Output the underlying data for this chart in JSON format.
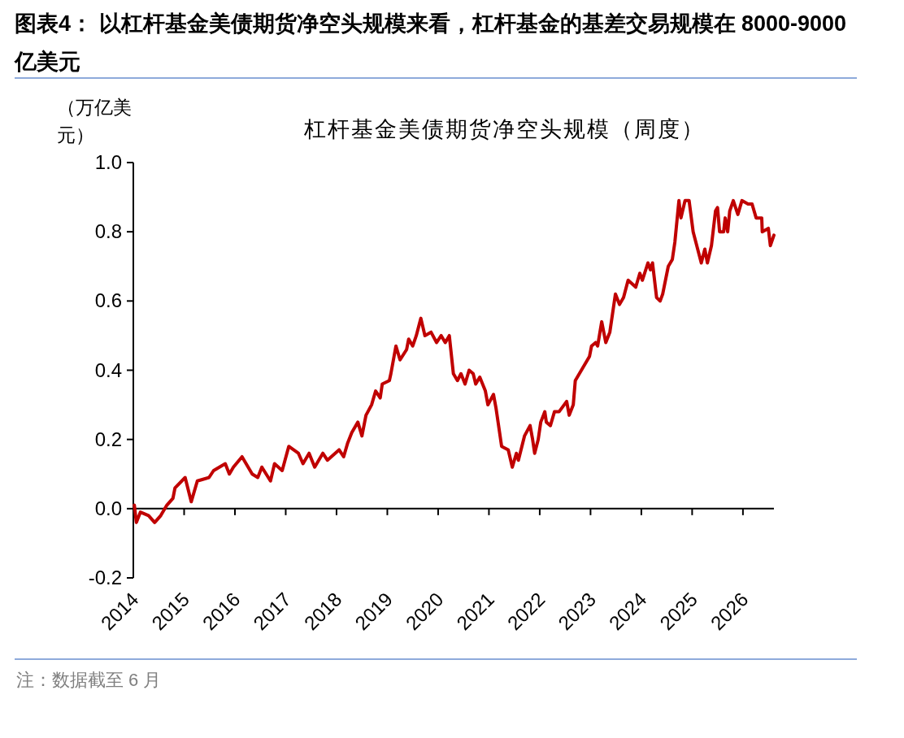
{
  "chart_data": {
    "type": "line",
    "title": "图表4： 以杠杆基金美债期货净空头规模来看，杠杆基金的基差交易规模在 8000-9000 亿美元",
    "subtitle": "杠杆基金美债期货净空头规模（周度）",
    "ylabel": "（万亿美元）",
    "annotations": [
      "注：数据截至 6 月"
    ],
    "x": [
      2014.02,
      2014.06,
      2014.14,
      2014.3,
      2014.42,
      2014.54,
      2014.66,
      2014.78,
      2014.82,
      2015.02,
      2015.14,
      2015.26,
      2015.49,
      2015.58,
      2015.81,
      2015.89,
      2015.97,
      2016.14,
      2016.34,
      2016.45,
      2016.53,
      2016.7,
      2016.78,
      2016.93,
      2017.06,
      2017.25,
      2017.34,
      2017.46,
      2017.57,
      2017.73,
      2017.82,
      2018.05,
      2018.14,
      2018.22,
      2018.3,
      2018.42,
      2018.5,
      2018.58,
      2018.69,
      2018.77,
      2018.86,
      2018.9,
      2019.04,
      2019.07,
      2019.17,
      2019.25,
      2019.38,
      2019.42,
      2019.5,
      2019.57,
      2019.66,
      2019.74,
      2019.86,
      2019.97,
      2020.06,
      2020.14,
      2020.22,
      2020.3,
      2020.38,
      2020.45,
      2020.53,
      2020.61,
      2020.69,
      2020.74,
      2020.82,
      2020.93,
      2020.98,
      2021.09,
      2021.14,
      2021.25,
      2021.38,
      2021.46,
      2021.54,
      2021.58,
      2021.7,
      2021.81,
      2021.86,
      2021.9,
      2021.97,
      2022.02,
      2022.1,
      2022.13,
      2022.21,
      2022.29,
      2022.38,
      2022.53,
      2022.58,
      2022.66,
      2022.7,
      2022.78,
      2022.9,
      2022.98,
      2023.02,
      2023.1,
      2023.14,
      2023.22,
      2023.3,
      2023.38,
      2023.49,
      2023.57,
      2023.65,
      2023.74,
      2023.89,
      2023.97,
      2024.02,
      2024.13,
      2024.18,
      2024.22,
      2024.3,
      2024.37,
      2024.42,
      2024.53,
      2024.61,
      2024.66,
      2024.74,
      2024.78,
      2024.86,
      2024.94,
      2025.02,
      2025.18,
      2025.25,
      2025.3,
      2025.38,
      2025.46,
      2025.5,
      2025.54,
      2025.62,
      2025.65,
      2025.7,
      2025.74,
      2025.81,
      2025.9,
      2025.98,
      2026.1,
      2026.18,
      2026.26,
      2026.37,
      2026.38,
      2026.5,
      2026.54,
      2026.61
    ],
    "series": [
      {
        "color": "#c00000",
        "values": [
          0.01,
          -0.04,
          -0.01,
          -0.02,
          -0.04,
          -0.02,
          0.01,
          0.03,
          0.06,
          0.09,
          0.02,
          0.08,
          0.09,
          0.11,
          0.13,
          0.1,
          0.12,
          0.15,
          0.1,
          0.09,
          0.12,
          0.08,
          0.13,
          0.11,
          0.18,
          0.16,
          0.13,
          0.16,
          0.12,
          0.16,
          0.14,
          0.17,
          0.15,
          0.19,
          0.22,
          0.25,
          0.21,
          0.27,
          0.3,
          0.34,
          0.32,
          0.36,
          0.37,
          0.39,
          0.47,
          0.43,
          0.46,
          0.49,
          0.47,
          0.5,
          0.55,
          0.5,
          0.51,
          0.48,
          0.5,
          0.48,
          0.5,
          0.39,
          0.37,
          0.39,
          0.36,
          0.4,
          0.39,
          0.36,
          0.38,
          0.34,
          0.3,
          0.33,
          0.29,
          0.18,
          0.17,
          0.12,
          0.16,
          0.14,
          0.21,
          0.24,
          0.2,
          0.16,
          0.2,
          0.25,
          0.28,
          0.25,
          0.24,
          0.28,
          0.28,
          0.31,
          0.27,
          0.3,
          0.37,
          0.39,
          0.42,
          0.44,
          0.47,
          0.48,
          0.47,
          0.54,
          0.48,
          0.51,
          0.62,
          0.59,
          0.61,
          0.66,
          0.64,
          0.68,
          0.66,
          0.71,
          0.69,
          0.71,
          0.61,
          0.6,
          0.62,
          0.7,
          0.72,
          0.77,
          0.89,
          0.84,
          0.89,
          0.89,
          0.8,
          0.71,
          0.75,
          0.71,
          0.76,
          0.86,
          0.87,
          0.8,
          0.8,
          0.84,
          0.8,
          0.86,
          0.89,
          0.85,
          0.89,
          0.88,
          0.88,
          0.84,
          0.84,
          0.8,
          0.81,
          0.76,
          0.79
        ]
      }
    ],
    "xlim": [
      2014,
      2026.61
    ],
    "xticks": [
      2014,
      2015,
      2016,
      2017,
      2018,
      2019,
      2020,
      2021,
      2022,
      2023,
      2024,
      2025,
      2026
    ],
    "ylim": [
      -0.2,
      1.0
    ],
    "yticks": [
      -0.2,
      {
        "value": 0,
        "label": "0.0"
      },
      0.2,
      0.4,
      0.6,
      0.8,
      {
        "value": 1,
        "label": "1.0"
      }
    ]
  }
}
